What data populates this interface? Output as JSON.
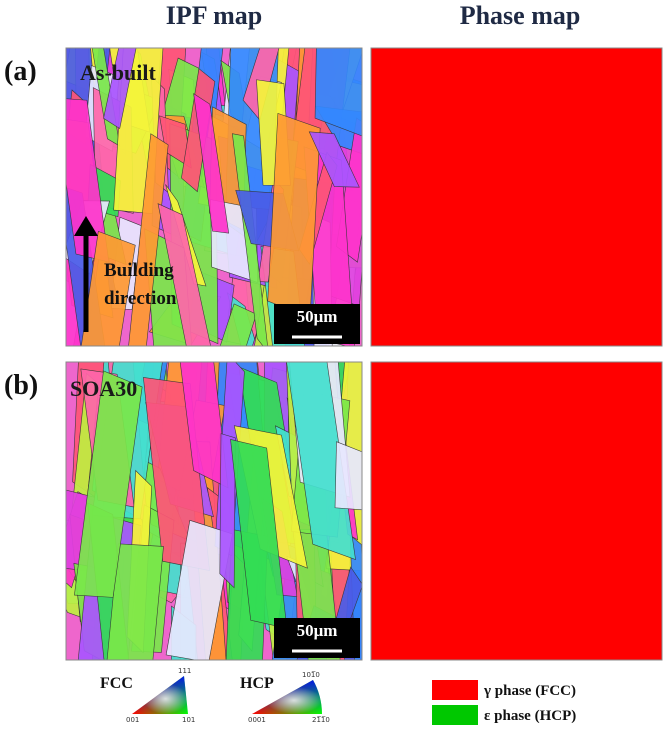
{
  "headers": {
    "ipf": "IPF map",
    "phase": "Phase map"
  },
  "rows": [
    {
      "label": "(a)",
      "sample": "As-built",
      "scale_bar": "50μm"
    },
    {
      "label": "(b)",
      "sample": "SOA30",
      "scale_bar": "50μm"
    }
  ],
  "arrow_label": [
    "Building",
    "direction"
  ],
  "ipf_legend": {
    "fcc": {
      "title": "FCC",
      "corners": [
        "001",
        "101",
        "111"
      ]
    },
    "hcp": {
      "title": "HCP",
      "corners": [
        "0001",
        "21̅1̅0",
        "101̅0"
      ]
    }
  },
  "phase_legend": [
    {
      "label": "γ phase (FCC)",
      "color": "#ff0000"
    },
    {
      "label": "ε phase (HCP)",
      "color": "#00c800"
    }
  ]
}
